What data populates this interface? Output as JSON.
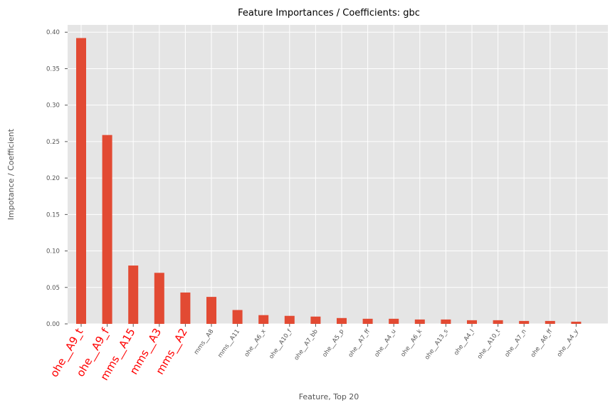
{
  "chart_data": {
    "type": "bar",
    "title": "Feature Importances / Coefficients: gbc",
    "xlabel": "Feature, Top 20",
    "ylabel": "Impotance / Coefficient",
    "ylim": [
      0,
      0.41
    ],
    "yticks": [
      0.0,
      0.05,
      0.1,
      0.15,
      0.2,
      0.25,
      0.3,
      0.35,
      0.4
    ],
    "grid": true,
    "categories": [
      "ohe__A9_t",
      "ohe__A9_f",
      "mms__A15",
      "mms__A3",
      "mms__A2",
      "mms__A8",
      "mms__A11",
      "ohe__A6_x",
      "ohe__A10_f",
      "ohe__A7_bb",
      "ohe__A5_p",
      "ohe__A7_ff",
      "ohe__A4_u",
      "ohe__A6_k",
      "ohe__A13_s",
      "ohe__A4_l",
      "ohe__A10_t",
      "ohe__A7_n",
      "ohe__A6_ff",
      "ohe__A4_y"
    ],
    "values": [
      0.392,
      0.259,
      0.08,
      0.07,
      0.043,
      0.037,
      0.019,
      0.012,
      0.011,
      0.01,
      0.008,
      0.007,
      0.007,
      0.006,
      0.006,
      0.005,
      0.005,
      0.004,
      0.004,
      0.003
    ],
    "highlighted_count": 5,
    "colors": {
      "bar": "#E24A33",
      "highlight_label": "#FF0000",
      "background": "#E5E5E5",
      "grid": "#FFFFFF"
    }
  }
}
